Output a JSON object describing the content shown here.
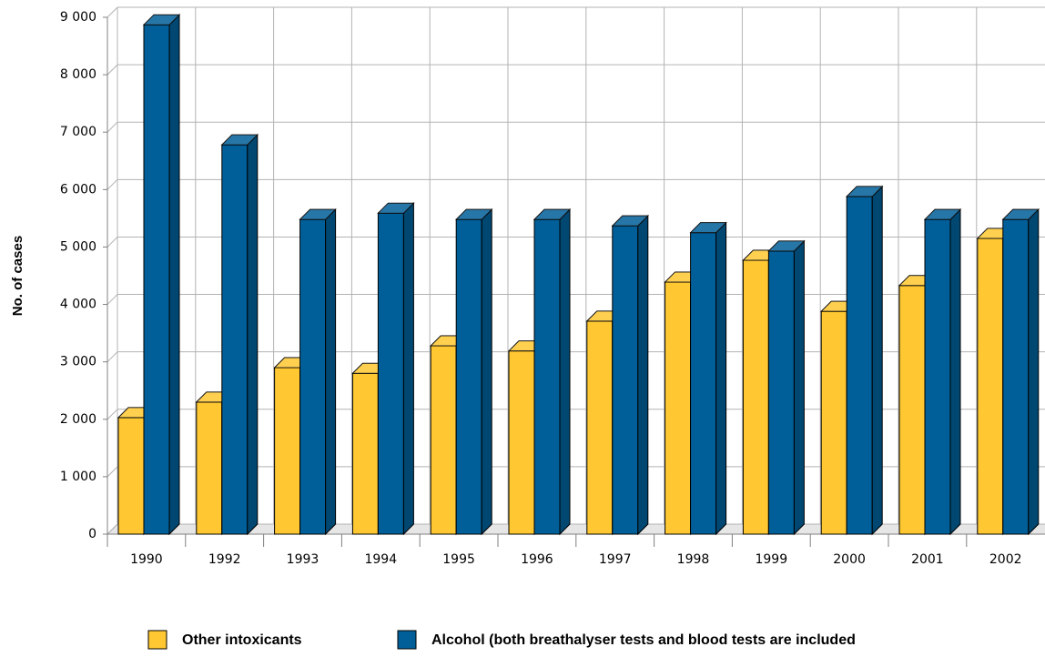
{
  "chart_data": {
    "type": "bar3d",
    "y_label": "No. of cases",
    "categories": [
      "1990",
      "1992",
      "1993",
      "1994",
      "1995",
      "1996",
      "1997",
      "1998",
      "1999",
      "2000",
      "2001",
      "2002"
    ],
    "series": [
      {
        "name": "Other intoxicants",
        "color": "#ffc832",
        "values": [
          2030,
          2300,
          2900,
          2800,
          3280,
          3190,
          3710,
          4390,
          4770,
          3880,
          4330,
          5150
        ]
      },
      {
        "name": "Alcohol (both breathalyser tests and blood tests are included",
        "color": "#005f99",
        "values": [
          8870,
          6780,
          5480,
          5590,
          5480,
          5480,
          5370,
          5250,
          4930,
          5880,
          5480,
          5480
        ]
      }
    ],
    "ylim": [
      0,
      9000
    ],
    "yticks": [
      0,
      {
        "value": 1000,
        "label": "1 000"
      },
      {
        "value": 2000,
        "label": "2 000"
      },
      {
        "value": 3000,
        "label": "3 000"
      },
      {
        "value": 4000,
        "label": "4 000"
      },
      {
        "value": 5000,
        "label": "5 000"
      },
      {
        "value": 6000,
        "label": "6 000"
      },
      {
        "value": 7000,
        "label": "7 000"
      },
      {
        "value": 8000,
        "label": "8 000"
      },
      {
        "value": 9000,
        "label": "9 000"
      }
    ],
    "grid": true
  }
}
